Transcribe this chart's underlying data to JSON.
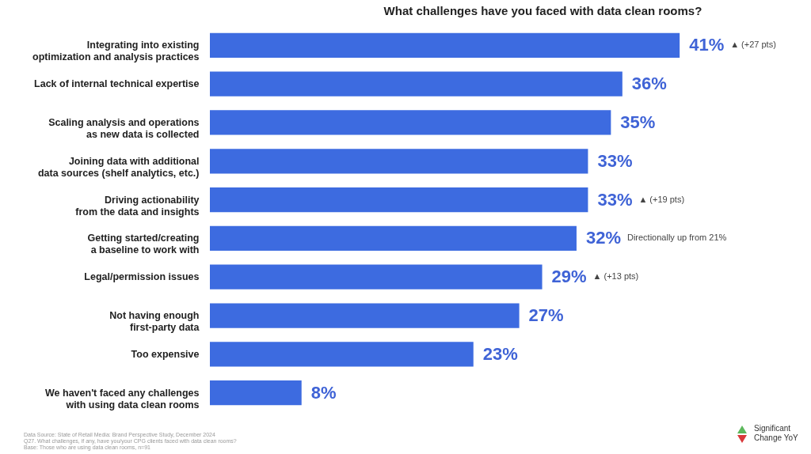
{
  "chart_data": {
    "type": "bar",
    "orientation": "horizontal",
    "title": "What challenges have you faced with data clean rooms?",
    "categories": [
      "Integrating into existing\noptimization and analysis practices",
      "Lack of internal technical expertise",
      "Scaling analysis and operations\nas new data is collected",
      "Joining data with additional\ndata sources (shelf analytics, etc.)",
      "Driving actionability\nfrom the data and insights",
      "Getting started/creating\na baseline to work with",
      "Legal/permission issues",
      "Not having enough\nfirst-party data",
      "Too expensive",
      "We haven't faced any challenges\nwith using data clean rooms"
    ],
    "values": [
      41,
      36,
      35,
      33,
      33,
      32,
      29,
      27,
      23,
      8
    ],
    "value_labels": [
      "41%",
      "36%",
      "35%",
      "33%",
      "33%",
      "32%",
      "29%",
      "27%",
      "23%",
      "8%"
    ],
    "color": "#3d6be0",
    "annotations": [
      "▲ (+27 pts)",
      "▲ (+19 pts)",
      "Directionally up from 21%",
      "▲ (+13 pts)",
      "Data Source: State of Retail Media: Brand Perspective Study, December 2024",
      "Q27. What challenges, if any, have you/your CPG clients faced with data clean rooms?",
      "Base: Those who are using data clean rooms, n=91",
      "Significant\nChange YoY"
    ]
  }
}
